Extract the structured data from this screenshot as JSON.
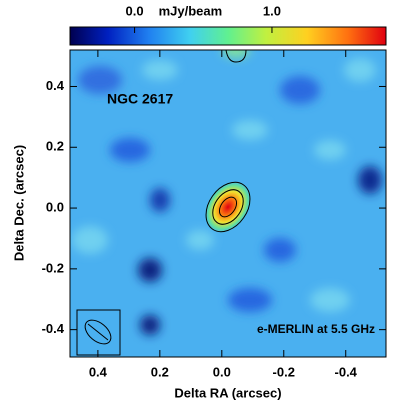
{
  "chart_data": {
    "type": "image",
    "title": "NGC 2617",
    "annotation": "e-MERLIN at 5.5 GHz",
    "xlabel": "Delta RA (arcsec)",
    "ylabel": "Delta Dec. (arcsec)",
    "xlim": [
      0.49,
      -0.53
    ],
    "ylim": [
      -0.49,
      0.52
    ],
    "xticks": [
      0.4,
      0.2,
      {
        "value": 0,
        "label": "0.0"
      },
      -0.2,
      -0.4
    ],
    "yticks": [
      0.4,
      0.2,
      {
        "value": 0,
        "label": "0.0"
      },
      -0.2,
      -0.4
    ],
    "colorbar": {
      "label": "mJy/beam",
      "lim": [
        -0.47,
        1.83
      ],
      "ticks": [
        {
          "value": 0,
          "label": "0.0"
        },
        {
          "value": 1,
          "label": "1.0"
        }
      ]
    }
  }
}
